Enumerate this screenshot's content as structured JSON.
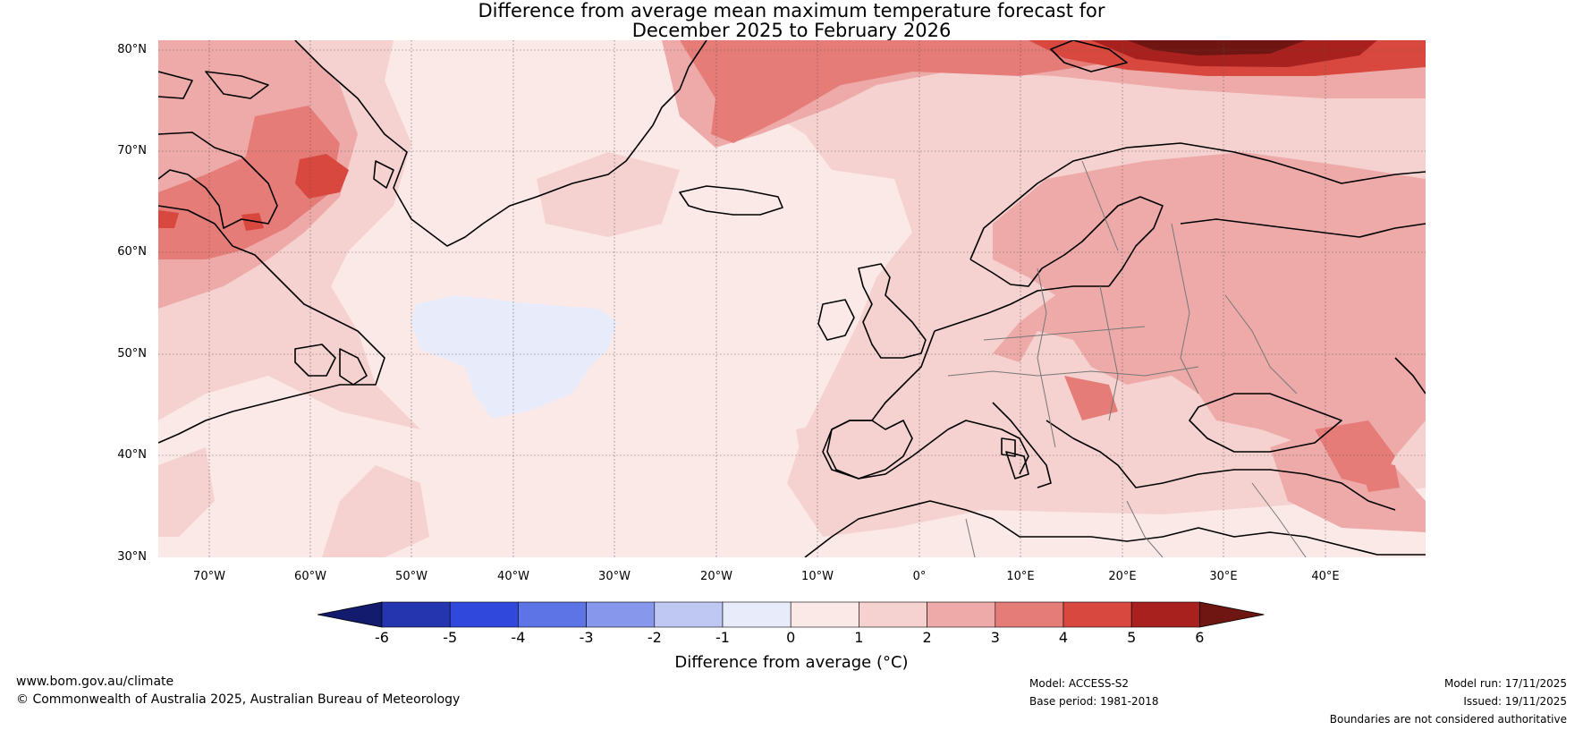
{
  "title": {
    "line1": "Difference from average mean maximum temperature forecast for",
    "line2": "December 2025 to February 2026"
  },
  "map": {
    "lat_labels": [
      "80°N",
      "70°N",
      "60°N",
      "50°N",
      "40°N",
      "30°N"
    ],
    "lon_labels": [
      "70°W",
      "60°W",
      "50°W",
      "40°W",
      "30°W",
      "20°W",
      "10°W",
      "0°",
      "10°E",
      "20°E",
      "30°E",
      "40°E"
    ],
    "extent": {
      "lon_min": -75,
      "lon_max": 50,
      "lat_min": 30,
      "lat_max": 81
    }
  },
  "colorbar": {
    "ticks": [
      "-6",
      "-5",
      "-4",
      "-3",
      "-2",
      "-1",
      "0",
      "1",
      "2",
      "3",
      "4",
      "5",
      "6"
    ],
    "colors": [
      "#121b6e",
      "#2535b0",
      "#3049dc",
      "#5c74e6",
      "#8797ec",
      "#bfc8f3",
      "#e8ebfa",
      "#fbe9e7",
      "#f5d2d0",
      "#edaaa8",
      "#e57c78",
      "#d9483e",
      "#a9211f",
      "#6f1512"
    ],
    "label": "Difference from average (°C)"
  },
  "footer": {
    "url": "www.bom.gov.au/climate",
    "copyright": "© Commonwealth of Australia 2025, Australian Bureau of Meteorology",
    "model": "Model: ACCESS-S2",
    "base_period": "Base period: 1981-2018",
    "model_run": "Model run: 17/11/2025",
    "issued": "Issued: 19/11/2025",
    "disclaimer": "Boundaries are not considered authoritative"
  }
}
